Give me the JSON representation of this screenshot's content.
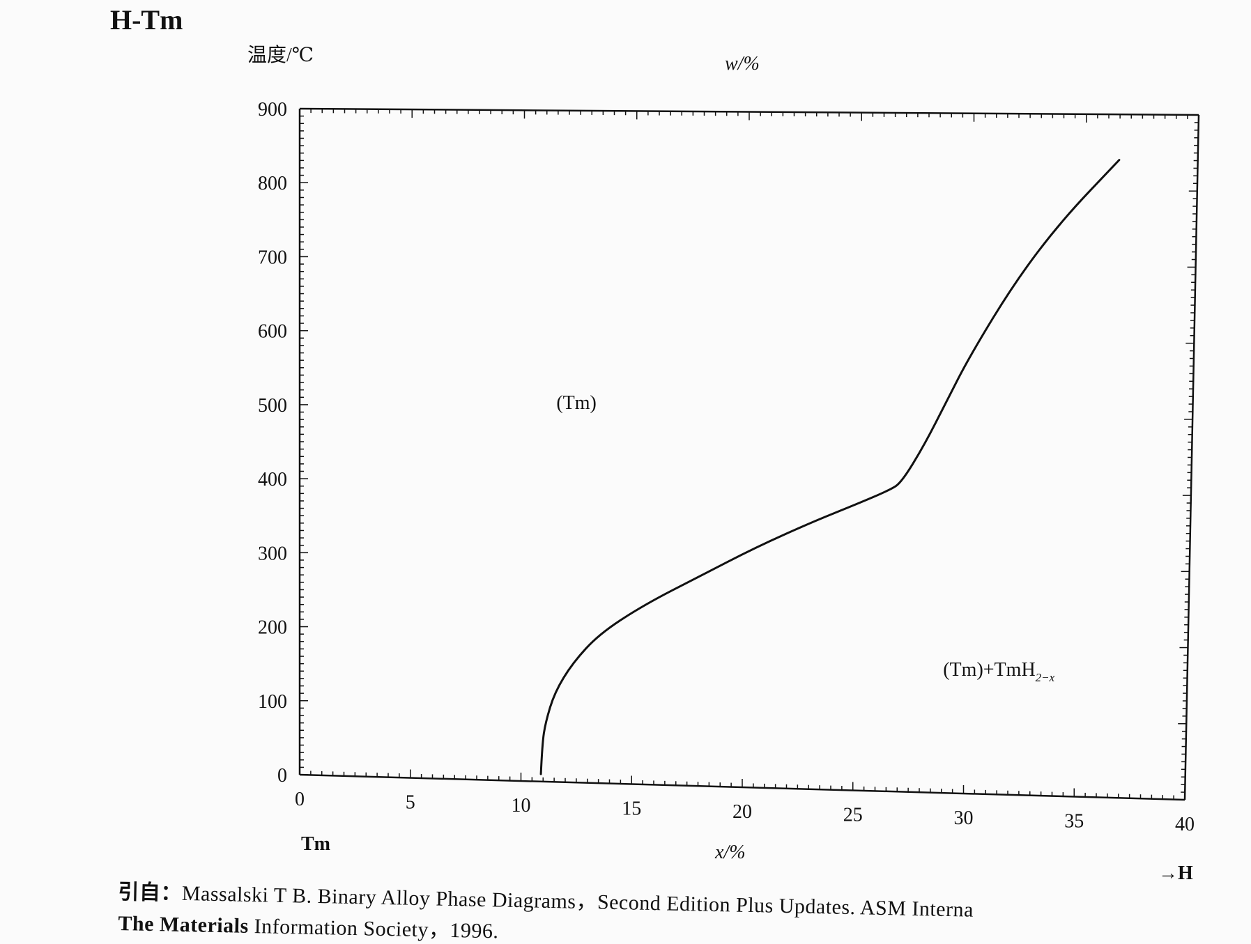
{
  "chart_data": {
    "type": "line",
    "title": "H-Tm",
    "ylabel": "温度/℃",
    "xlabel": "x/%",
    "top_axis_label": "w/%",
    "left_element": "Tm",
    "right_element": "→H",
    "xlim": [
      0,
      40
    ],
    "ylim": [
      0,
      900
    ],
    "x_ticks": [
      "0",
      "5",
      "10",
      "15",
      "20",
      "25",
      "30",
      "35",
      "40"
    ],
    "y_ticks": [
      "0",
      "100",
      "200",
      "300",
      "400",
      "500",
      "600",
      "700",
      "800",
      "900"
    ],
    "regions": [
      {
        "label": "(Tm)",
        "x": 11.5,
        "y": 500
      },
      {
        "label": "(Tm)+TmH",
        "subscript": "2−x",
        "x": 29,
        "y": 155
      }
    ],
    "series": [
      {
        "points": [
          [
            10.9,
            10
          ],
          [
            10.95,
            50
          ],
          [
            11.1,
            80
          ],
          [
            11.5,
            120
          ],
          [
            12.3,
            160
          ],
          [
            13.5,
            200
          ],
          [
            15.5,
            240
          ],
          [
            18,
            280
          ],
          [
            20.5,
            320
          ],
          [
            23,
            355
          ],
          [
            25,
            380
          ],
          [
            26.5,
            400
          ],
          [
            27,
            410
          ],
          [
            28,
            460
          ],
          [
            29,
            520
          ],
          [
            30,
            580
          ],
          [
            32,
            680
          ],
          [
            34,
            760
          ],
          [
            36.5,
            840
          ]
        ]
      }
    ]
  },
  "caption": {
    "line1_prefix": "引自：",
    "line1_text": "Massalski T B.  Binary Alloy Phase Diagrams，Second Edition Plus Updates.  ASM Interna",
    "line2_bold": "The Materials",
    "line2_text": " Information Society，1996."
  }
}
